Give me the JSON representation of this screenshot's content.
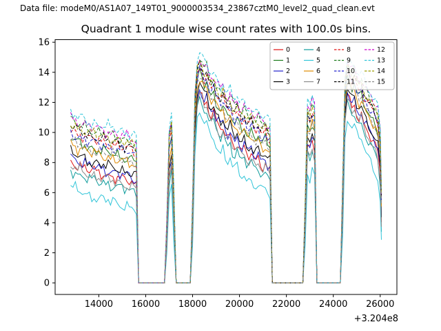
{
  "header": {
    "data_file": "Data file: modeM0/AS1A07_149T01_9000003534_23867cztM0_level2_quad_clean.evt",
    "color": "#000080"
  },
  "chart_data": {
    "type": "line",
    "title": "Quadrant 1 module wise count rates with 100.0s bins.",
    "xlabel": "",
    "ylabel": "",
    "x_offset_label": "+3.204e8",
    "x_axis_offset": 320400000,
    "bin_seconds": 100,
    "grid": false,
    "legend_position": "upper right",
    "legend_columns": 4,
    "xlim": [
      12137.5,
      26712.5
    ],
    "ylim": [
      -0.77,
      16.17
    ],
    "xticks": [
      14000,
      16000,
      18000,
      20000,
      22000,
      24000,
      26000
    ],
    "yticks": [
      0,
      2,
      4,
      6,
      8,
      10,
      12,
      14,
      16
    ],
    "x_knots": [
      12800,
      12900,
      13000,
      13100,
      13200,
      13300,
      13400,
      13500,
      13600,
      13700,
      13800,
      13900,
      14000,
      14100,
      14200,
      14300,
      14400,
      14500,
      14600,
      14700,
      14800,
      14900,
      15000,
      15100,
      15200,
      15300,
      15400,
      15500,
      15600,
      15650,
      15700,
      16850,
      16900,
      17000,
      17050,
      17100,
      17150,
      17200,
      17250,
      17950,
      18000,
      18100,
      18200,
      18300,
      18400,
      18500,
      18600,
      18700,
      18800,
      18900,
      19000,
      19100,
      19200,
      19300,
      19400,
      19500,
      19600,
      19700,
      19800,
      19900,
      20000,
      20100,
      20200,
      20300,
      20400,
      20500,
      20600,
      20700,
      20800,
      20900,
      21000,
      21100,
      21200,
      21300,
      21350,
      21400,
      22750,
      22800,
      22900,
      23000,
      23100,
      23200,
      23250,
      23300,
      24350,
      24400,
      24500,
      24600,
      24700,
      24800,
      24900,
      25000,
      25100,
      25200,
      25300,
      25400,
      25500,
      25600,
      25700,
      25800,
      25900,
      25950,
      26000,
      26050
    ],
    "base_rate_knots": [
      8.8,
      8.55,
      8.6,
      8.3,
      8.45,
      8.2,
      8.35,
      8.05,
      8.15,
      7.95,
      8.1,
      7.9,
      8.0,
      7.8,
      7.95,
      7.7,
      7.85,
      7.6,
      7.75,
      7.55,
      7.65,
      7.45,
      7.55,
      7.35,
      7.5,
      7.3,
      7.35,
      7.2,
      7.1,
      3,
      0,
      0,
      3,
      7.8,
      8.9,
      8.6,
      8.4,
      4.5,
      0,
      0,
      4,
      10.5,
      12.6,
      13.2,
      12.9,
      12.4,
      12.6,
      11.9,
      11.6,
      11.8,
      11.2,
      11.0,
      10.7,
      11.0,
      10.4,
      10.2,
      10.45,
      9.9,
      9.7,
      9.95,
      9.5,
      9.3,
      9.55,
      9.1,
      9.0,
      9.2,
      8.8,
      8.7,
      8.9,
      8.5,
      8.4,
      8.6,
      8.2,
      8.1,
      4,
      0,
      0,
      4,
      9.6,
      9.3,
      9.9,
      9.4,
      5,
      0,
      0,
      5,
      11.5,
      12.9,
      12.6,
      12.2,
      12.4,
      11.8,
      11.5,
      11.7,
      11.1,
      10.8,
      10.5,
      10.2,
      9.9,
      9.6,
      9.2,
      8.8,
      7.8,
      4.5
    ],
    "series": [
      {
        "name": "0",
        "color": "#e01010",
        "dash": false,
        "offset": -0.6
      },
      {
        "name": "1",
        "color": "#1a7a1a",
        "dash": false,
        "offset": 0.9
      },
      {
        "name": "2",
        "color": "#2020cc",
        "dash": false,
        "offset": -0.3
      },
      {
        "name": "3",
        "color": "#000000",
        "dash": false,
        "offset": 0.0
      },
      {
        "name": "4",
        "color": "#0e9c9c",
        "dash": false,
        "offset": -1.2
      },
      {
        "name": "5",
        "color": "#2fc4d8",
        "dash": false,
        "offset": -2.3
      },
      {
        "name": "6",
        "color": "#e08a00",
        "dash": false,
        "offset": 0.6
      },
      {
        "name": "7",
        "color": "#8a8a8a",
        "dash": false,
        "offset": -0.9
      },
      {
        "name": "8",
        "color": "#e01010",
        "dash": true,
        "offset": 1.5
      },
      {
        "name": "9",
        "color": "#1a7a1a",
        "dash": true,
        "offset": 2.1
      },
      {
        "name": "10",
        "color": "#2020cc",
        "dash": true,
        "offset": 1.3
      },
      {
        "name": "11",
        "color": "#000000",
        "dash": true,
        "offset": 1.7
      },
      {
        "name": "12",
        "color": "#cc00cc",
        "dash": true,
        "offset": 2.3
      },
      {
        "name": "13",
        "color": "#2fc4d8",
        "dash": true,
        "offset": 2.6
      },
      {
        "name": "14",
        "color": "#9c9c00",
        "dash": true,
        "offset": 1.9
      },
      {
        "name": "15",
        "color": "#8a8a8a",
        "dash": true,
        "offset": 0.8
      }
    ]
  }
}
